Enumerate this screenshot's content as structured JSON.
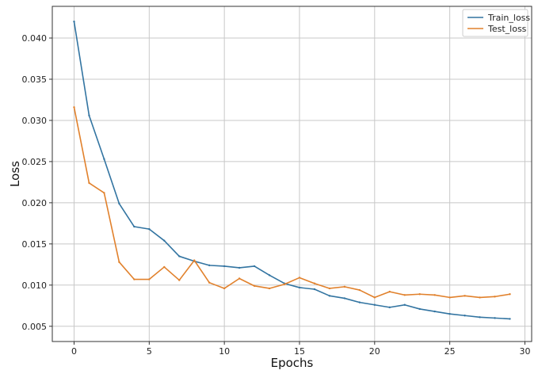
{
  "chart_data": {
    "type": "line",
    "xlabel": "Epochs",
    "ylabel": "Loss",
    "xlim": [
      -1.45,
      30.45
    ],
    "ylim": [
      0.00315,
      0.04385
    ],
    "xticks": [
      0,
      5,
      10,
      15,
      20,
      25,
      30
    ],
    "xtick_labels": [
      "0",
      "5",
      "10",
      "15",
      "20",
      "25",
      "30"
    ],
    "yticks": [
      0.005,
      0.01,
      0.015,
      0.02,
      0.025,
      0.03,
      0.035,
      0.04
    ],
    "ytick_labels": [
      "0.005",
      "0.010",
      "0.015",
      "0.020",
      "0.025",
      "0.030",
      "0.035",
      "0.040"
    ],
    "grid": true,
    "legend_position": "upper right",
    "x": [
      0,
      1,
      2,
      3,
      4,
      5,
      6,
      7,
      8,
      9,
      10,
      11,
      12,
      13,
      14,
      15,
      16,
      17,
      18,
      19,
      20,
      21,
      22,
      23,
      24,
      25,
      26,
      27,
      28,
      29
    ],
    "series": [
      {
        "name": "Train_loss",
        "color": "#3274a1",
        "values": [
          0.042,
          0.0306,
          0.0253,
          0.0199,
          0.0171,
          0.0168,
          0.0154,
          0.0135,
          0.0129,
          0.0124,
          0.0123,
          0.0121,
          0.0123,
          0.0112,
          0.0102,
          0.0097,
          0.0095,
          0.0087,
          0.0084,
          0.0079,
          0.0076,
          0.0073,
          0.0076,
          0.0071,
          0.0068,
          0.0065,
          0.0063,
          0.0061,
          0.006,
          0.0059
        ]
      },
      {
        "name": "Test_loss",
        "color": "#e1812c",
        "values": [
          0.0316,
          0.0224,
          0.0212,
          0.0128,
          0.0107,
          0.0107,
          0.0122,
          0.0106,
          0.013,
          0.0103,
          0.0096,
          0.0108,
          0.0099,
          0.0096,
          0.0101,
          0.0109,
          0.0102,
          0.0096,
          0.0098,
          0.0094,
          0.0085,
          0.0092,
          0.0088,
          0.0089,
          0.0088,
          0.0085,
          0.0087,
          0.0085,
          0.0086,
          0.0089
        ]
      }
    ]
  }
}
